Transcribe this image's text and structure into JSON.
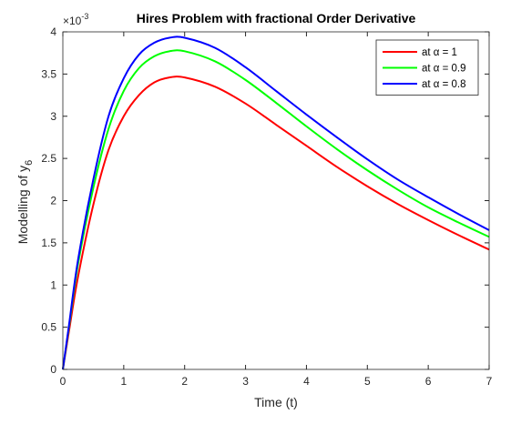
{
  "chart_data": {
    "type": "line",
    "title": "Hires Problem with fractional Order Derivative",
    "xlabel": "Time (t)",
    "ylabel": {
      "text": "Modelling of y",
      "subscript": "6"
    },
    "y_multiplier": {
      "base": "×10",
      "exponent": "-3"
    },
    "x": [
      0,
      0.1,
      0.25,
      0.5,
      0.75,
      1,
      1.25,
      1.5,
      1.75,
      2,
      2.5,
      3,
      3.5,
      4,
      4.5,
      5,
      5.5,
      6,
      6.5,
      7
    ],
    "series": [
      {
        "name": "at α = 1",
        "color": "#ff0000",
        "values": [
          0,
          0.45,
          1.1,
          1.95,
          2.6,
          3.0,
          3.25,
          3.4,
          3.46,
          3.46,
          3.35,
          3.15,
          2.9,
          2.65,
          2.4,
          2.17,
          1.96,
          1.77,
          1.59,
          1.42
        ]
      },
      {
        "name": "at α = 0.9",
        "color": "#00ff00",
        "values": [
          0,
          0.5,
          1.25,
          2.15,
          2.85,
          3.3,
          3.57,
          3.71,
          3.77,
          3.77,
          3.65,
          3.43,
          3.16,
          2.88,
          2.61,
          2.36,
          2.13,
          1.92,
          1.74,
          1.57
        ]
      },
      {
        "name": "at α = 0.8",
        "color": "#0000ff",
        "values": [
          0,
          0.52,
          1.3,
          2.25,
          3.0,
          3.45,
          3.73,
          3.87,
          3.93,
          3.93,
          3.81,
          3.58,
          3.3,
          3.02,
          2.75,
          2.49,
          2.25,
          2.04,
          1.84,
          1.65
        ]
      }
    ],
    "xlim": [
      0,
      7
    ],
    "xticks": [
      0,
      1,
      2,
      3,
      4,
      5,
      6,
      7
    ],
    "ylim": [
      0,
      4
    ],
    "yticks": [
      0,
      0.5,
      1,
      1.5,
      2,
      2.5,
      3,
      3.5,
      4
    ],
    "grid": false,
    "legend": "top-right"
  }
}
